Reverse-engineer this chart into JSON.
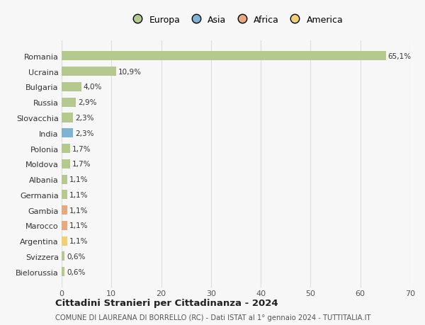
{
  "countries": [
    "Romania",
    "Ucraina",
    "Bulgaria",
    "Russia",
    "Slovacchia",
    "India",
    "Polonia",
    "Moldova",
    "Albania",
    "Germania",
    "Gambia",
    "Marocco",
    "Argentina",
    "Svizzera",
    "Bielorussia"
  ],
  "values": [
    65.1,
    10.9,
    4.0,
    2.9,
    2.3,
    2.3,
    1.7,
    1.7,
    1.1,
    1.1,
    1.1,
    1.1,
    1.1,
    0.6,
    0.6
  ],
  "labels": [
    "65,1%",
    "10,9%",
    "4,0%",
    "2,9%",
    "2,3%",
    "2,3%",
    "1,7%",
    "1,7%",
    "1,1%",
    "1,1%",
    "1,1%",
    "1,1%",
    "1,1%",
    "0,6%",
    "0,6%"
  ],
  "continents": [
    "Europa",
    "Europa",
    "Europa",
    "Europa",
    "Europa",
    "Asia",
    "Europa",
    "Europa",
    "Europa",
    "Europa",
    "Africa",
    "Africa",
    "America",
    "Europa",
    "Europa"
  ],
  "colors": {
    "Europa": "#b5c98e",
    "Asia": "#7eb3d4",
    "Africa": "#e8a97e",
    "America": "#f0d070"
  },
  "legend_order": [
    "Europa",
    "Asia",
    "Africa",
    "America"
  ],
  "xlim": [
    0,
    70
  ],
  "xticks": [
    0,
    10,
    20,
    30,
    40,
    50,
    60,
    70
  ],
  "title": "Cittadini Stranieri per Cittadinanza - 2024",
  "subtitle": "COMUNE DI LAUREANA DI BORRELLO (RC) - Dati ISTAT al 1° gennaio 2024 - TUTTITALIA.IT",
  "bg_color": "#f7f7f7",
  "grid_color": "#dddddd",
  "bar_height": 0.6
}
